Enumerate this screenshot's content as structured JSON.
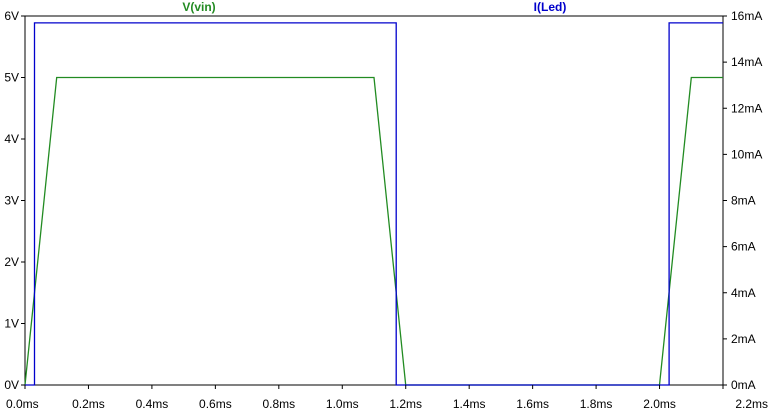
{
  "chart_data": {
    "type": "line",
    "legend_placement": "top",
    "grid": false,
    "x": {
      "ticks": [
        0,
        0.2,
        0.4,
        0.6,
        0.8,
        1.0,
        1.2,
        1.4,
        1.6,
        1.8,
        2.0,
        2.2
      ],
      "tick_labels": [
        "0.0ms",
        "0.2ms",
        "0.4ms",
        "0.6ms",
        "0.8ms",
        "1.0ms",
        "1.2ms",
        "1.4ms",
        "1.6ms",
        "1.8ms",
        "2.0ms",
        "2.2ms"
      ],
      "range": [
        0,
        2.2
      ]
    },
    "y_left": {
      "ticks": [
        0,
        1,
        2,
        3,
        4,
        5,
        6
      ],
      "tick_labels": [
        "0V",
        "1V",
        "2V",
        "3V",
        "4V",
        "5V",
        "6V"
      ],
      "range": [
        0,
        6
      ]
    },
    "y_right": {
      "ticks": [
        0,
        2,
        4,
        6,
        8,
        10,
        12,
        14,
        16
      ],
      "tick_labels": [
        "0mA",
        "2mA",
        "4mA",
        "6mA",
        "8mA",
        "10mA",
        "12mA",
        "14mA",
        "16mA"
      ],
      "range": [
        0,
        16
      ]
    },
    "series": [
      {
        "name": "V(vin)",
        "color": "#228b22",
        "axis": "left",
        "points": [
          [
            0,
            0
          ],
          [
            0.1,
            5
          ],
          [
            1.1,
            5
          ],
          [
            1.2,
            0
          ],
          [
            2.0,
            0
          ],
          [
            2.1,
            5
          ],
          [
            2.2,
            5
          ]
        ]
      },
      {
        "name": "I(Led)",
        "color": "#0000cc",
        "axis": "right",
        "points": [
          [
            0,
            0
          ],
          [
            0.03,
            0
          ],
          [
            0.03,
            15.7
          ],
          [
            1.17,
            15.7
          ],
          [
            1.17,
            0
          ],
          [
            2.03,
            0
          ],
          [
            2.03,
            15.7
          ],
          [
            2.2,
            15.7
          ]
        ]
      }
    ]
  }
}
